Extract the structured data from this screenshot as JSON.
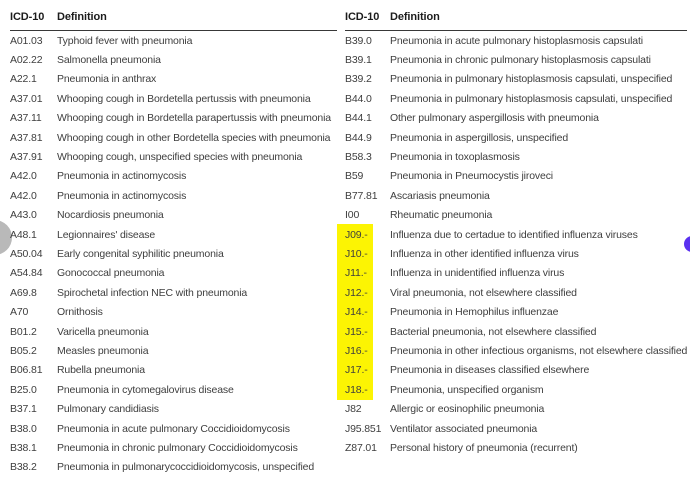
{
  "colors": {
    "highlight": "#fcf403",
    "header_text": "#1c1c1c",
    "body_text": "#3e3e3e",
    "header_rule": "#383838",
    "left_edge_circle": "#b9b9b9",
    "right_edge_dot": "#5a31f0",
    "background": "#ffffff"
  },
  "tables": [
    {
      "headers": {
        "code": "ICD-10",
        "definition": "Definition"
      },
      "rows": [
        {
          "code": "A01.03",
          "definition": "Typhoid fever with pneumonia"
        },
        {
          "code": "A02.22",
          "definition": "Salmonella pneumonia"
        },
        {
          "code": "A22.1",
          "definition": "Pneumonia in anthrax"
        },
        {
          "code": "A37.01",
          "definition": "Whooping cough in Bordetella pertussis with pneumonia"
        },
        {
          "code": "A37.11",
          "definition": "Whooping cough in Bordetella parapertussis with pneumonia"
        },
        {
          "code": "A37.81",
          "definition": "Whooping cough in other Bordetella species with pneumonia"
        },
        {
          "code": "A37.91",
          "definition": "Whooping cough, unspecified species with pneumonia"
        },
        {
          "code": "A42.0",
          "definition": "Pneumonia in actinomycosis"
        },
        {
          "code": "A42.0",
          "definition": "Pneumonia in actinomycosis"
        },
        {
          "code": "A43.0",
          "definition": "Nocardiosis pneumonia"
        },
        {
          "code": "A48.1",
          "definition": "Legionnaires' disease"
        },
        {
          "code": "A50.04",
          "definition": "Early congenital syphilitic pneumonia"
        },
        {
          "code": "A54.84",
          "definition": "Gonococcal pneumonia"
        },
        {
          "code": "A69.8",
          "definition": "Spirochetal infection NEC with pneumonia"
        },
        {
          "code": "A70",
          "definition": "Ornithosis"
        },
        {
          "code": "B01.2",
          "definition": "Varicella pneumonia"
        },
        {
          "code": "B05.2",
          "definition": "Measles pneumonia"
        },
        {
          "code": "B06.81",
          "definition": "Rubella pneumonia"
        },
        {
          "code": "B25.0",
          "definition": "Pneumonia in cytomegalovirus disease"
        },
        {
          "code": "B37.1",
          "definition": "Pulmonary candidiasis"
        },
        {
          "code": "B38.0",
          "definition": "Pneumonia in acute pulmonary Coccidioidomycosis"
        },
        {
          "code": "B38.1",
          "definition": "Pneumonia in chronic pulmonary Coccidioidomycosis"
        },
        {
          "code": "B38.2",
          "definition": "Pneumonia in pulmonarycoccidioidomycosis, unspecified"
        }
      ]
    },
    {
      "headers": {
        "code": "ICD-10",
        "definition": "Definition"
      },
      "rows": [
        {
          "code": "B39.0",
          "definition": "Pneumonia in acute pulmonary histoplasmosis capsulati"
        },
        {
          "code": "B39.1",
          "definition": "Pneumonia in chronic pulmonary histoplasmosis capsulati"
        },
        {
          "code": "B39.2",
          "definition": "Pneumonia in pulmonary histoplasmosis capsulati, unspecified"
        },
        {
          "code": "B44.0",
          "definition": "Pneumonia in pulmonary histoplasmosis capsulati, unspecified"
        },
        {
          "code": "B44.1",
          "definition": "Other pulmonary aspergillosis with pneumonia"
        },
        {
          "code": "B44.9",
          "definition": "Pneumonia in aspergillosis, unspecified"
        },
        {
          "code": "B58.3",
          "definition": "Pneumonia in toxoplasmosis"
        },
        {
          "code": "B59",
          "definition": "Pneumonia in Pneumocystis jiroveci"
        },
        {
          "code": "B77.81",
          "definition": "Ascariasis pneumonia"
        },
        {
          "code": "I00",
          "definition": "Rheumatic pneumonia"
        },
        {
          "code": "J09.-",
          "definition": "Influenza due to certadue to identified influenza viruses",
          "highlighted": true
        },
        {
          "code": "J10.-",
          "definition": "Influenza in other identified influenza virus",
          "highlighted": true
        },
        {
          "code": "J11.-",
          "definition": "Influenza in unidentified influenza virus",
          "highlighted": true
        },
        {
          "code": "J12.-",
          "definition": "Viral pneumonia, not elsewhere classified",
          "highlighted": true
        },
        {
          "code": "J14.-",
          "definition": "Pneumonia in Hemophilus influenzae",
          "highlighted": true
        },
        {
          "code": "J15.-",
          "definition": "Bacterial pneumonia, not elsewhere classified",
          "highlighted": true
        },
        {
          "code": "J16.-",
          "definition": "Pneumonia in other infectious organisms, not elsewhere classified",
          "highlighted": true
        },
        {
          "code": "J17.-",
          "definition": "Pneumonia in diseases classified elsewhere",
          "highlighted": true
        },
        {
          "code": "J18.-",
          "definition": "Pneumonia, unspecified organism",
          "highlighted": true
        },
        {
          "code": "J82",
          "definition": "Allergic or eosinophilic pneumonia"
        },
        {
          "code": "J95.851",
          "definition": "Ventilator associated pneumonia"
        },
        {
          "code": "Z87.01",
          "definition": "Personal history of pneumonia (recurrent)"
        }
      ]
    }
  ]
}
